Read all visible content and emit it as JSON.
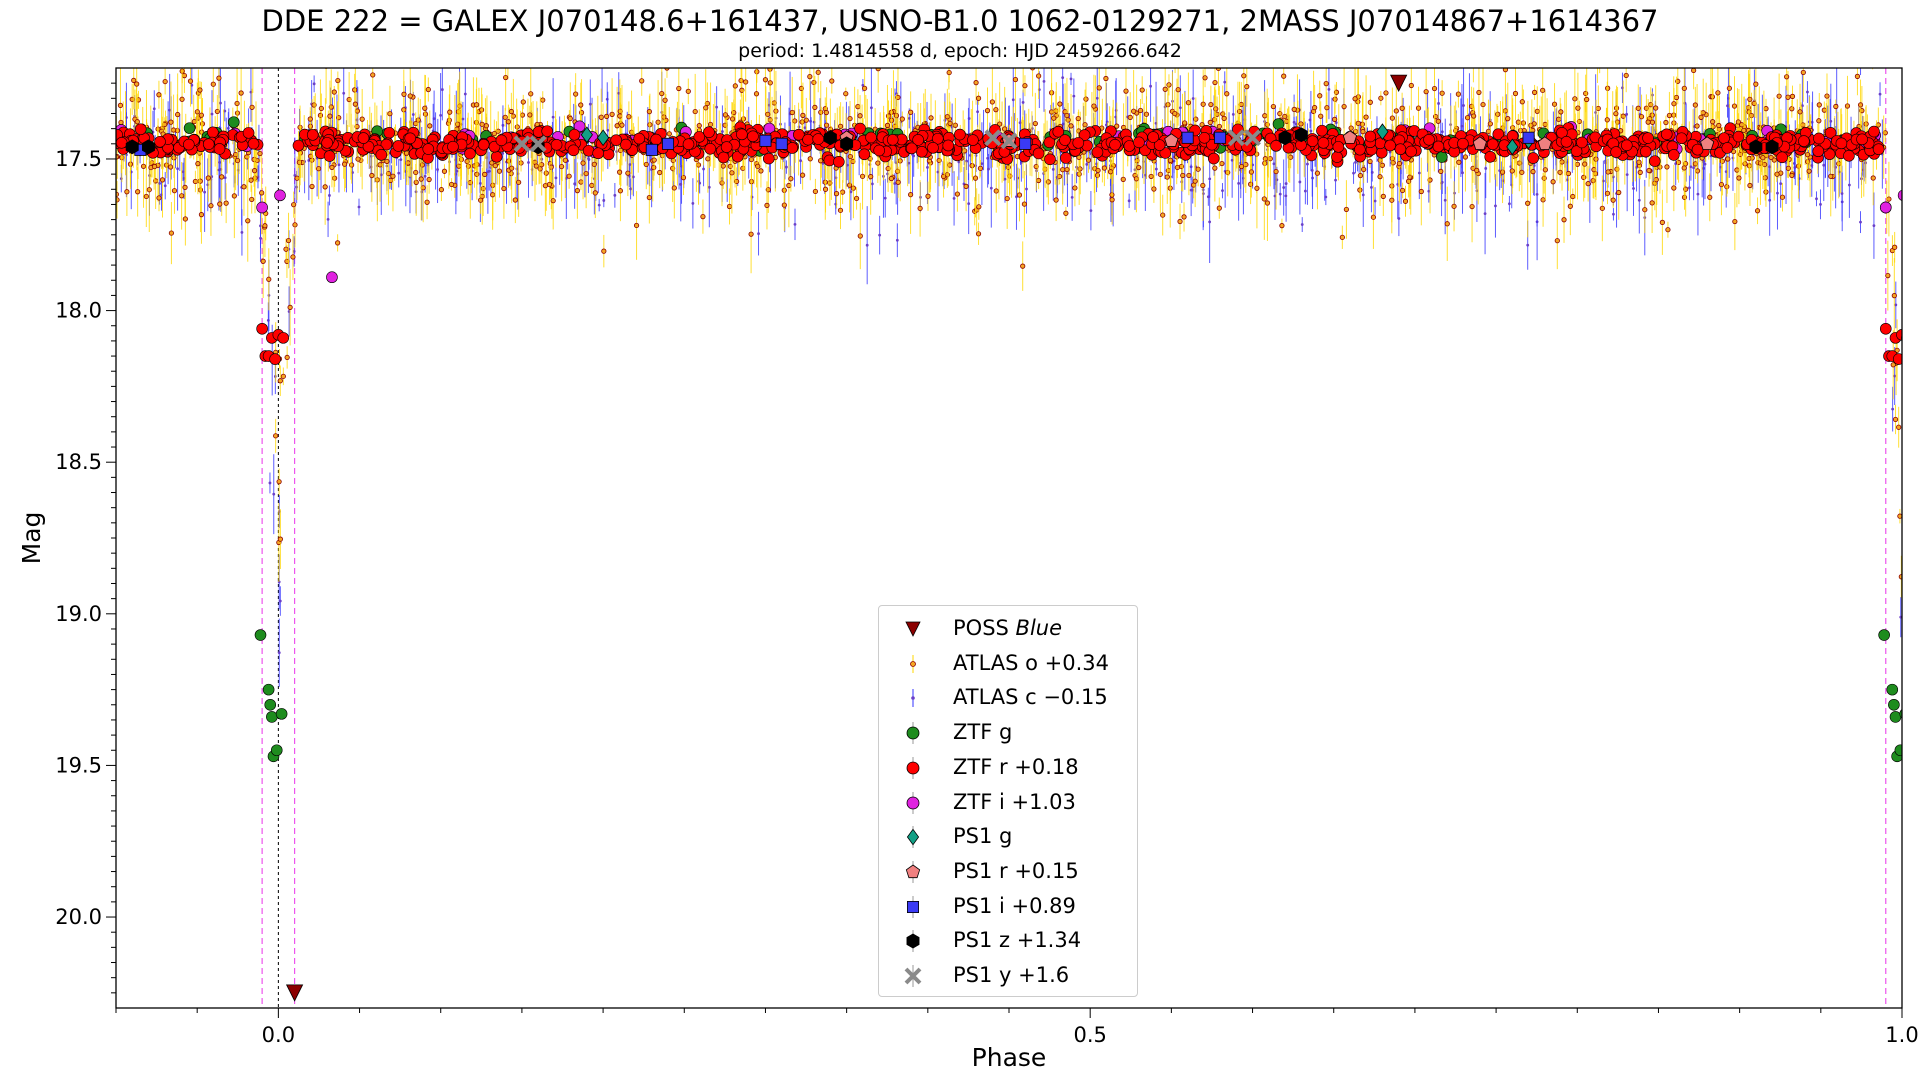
{
  "title": "DDE 222 = GALEX J070148.6+161437, USNO-B1.0 1062-0129271, 2MASS J07014867+1614367",
  "subtitle": "period: 1.4814558 d, epoch: HJD 2459266.642",
  "chart_data": {
    "type": "scatter",
    "xlabel": "Phase",
    "ylabel": "Mag",
    "xlim": [
      -0.1,
      1.0
    ],
    "ylim": [
      20.3,
      17.2
    ],
    "y_inverted": true,
    "x_ticks": [
      "0.0",
      "0.5",
      "1.0"
    ],
    "y_ticks": [
      "17.5",
      "18.0",
      "18.5",
      "19.0",
      "19.5",
      "20.0"
    ],
    "legend_position": "lower center",
    "eclipse_phase": 0.0,
    "eclipse_window": [
      -0.01,
      0.01
    ],
    "series": [
      {
        "name": "POSS Blue",
        "name_plain": "POSS ",
        "name_italic": "Blue",
        "marker": "triangle-down",
        "color": "#8b0000",
        "upper_limit": true,
        "points": [
          [
            0.01,
            20.25
          ],
          [
            0.69,
            17.25
          ]
        ]
      },
      {
        "name": "ATLAS o +0.34",
        "marker": "small-circle",
        "color": "#f5a623",
        "edge": "#8b0000",
        "errcolor": "#ffd700",
        "baseline": 17.45,
        "scatter": 0.16,
        "eclipse_depth": 1.5
      },
      {
        "name": "ATLAS c −0.15",
        "marker": "dot",
        "color": "#6a3fc8",
        "errcolor": "#3333ff",
        "baseline": 17.48,
        "scatter": 0.15,
        "eclipse_depth": 1.7
      },
      {
        "name": "ZTF g",
        "marker": "circle",
        "color": "#1e8c1e",
        "baseline": 17.43,
        "scatter": 0.03,
        "eclipse_points": [
          [
            -0.011,
            19.07
          ],
          [
            -0.006,
            19.25
          ],
          [
            -0.005,
            19.3
          ],
          [
            -0.004,
            19.34
          ],
          [
            -0.003,
            19.47
          ],
          [
            -0.001,
            19.45
          ],
          [
            0.002,
            19.33
          ]
        ]
      },
      {
        "name": "ZTF r +0.18",
        "marker": "circle",
        "color": "#ff0000",
        "baseline": 17.45,
        "scatter": 0.03,
        "eclipse_points": [
          [
            -0.01,
            18.06
          ],
          [
            -0.008,
            18.15
          ],
          [
            -0.006,
            18.15
          ],
          [
            -0.004,
            18.09
          ],
          [
            -0.002,
            18.16
          ],
          [
            0.0,
            18.08
          ],
          [
            0.003,
            18.09
          ]
        ]
      },
      {
        "name": "ZTF i +1.03",
        "marker": "circle",
        "color": "#e022e0",
        "baseline": 17.43,
        "scatter": 0.03,
        "eclipse_points": [
          [
            -0.01,
            17.66
          ],
          [
            0.001,
            17.62
          ],
          [
            0.033,
            17.89
          ],
          [
            0.99,
            17.66
          ]
        ]
      },
      {
        "name": "PS1 g",
        "marker": "diamond",
        "color": "#12a085",
        "points": [
          [
            0.19,
            17.42
          ],
          [
            0.2,
            17.43
          ],
          [
            0.68,
            17.41
          ],
          [
            0.76,
            17.46
          ],
          [
            0.77,
            17.44
          ]
        ]
      },
      {
        "name": "PS1 r +0.15",
        "marker": "pentagon",
        "color": "#f08080",
        "points": [
          [
            0.35,
            17.43
          ],
          [
            0.45,
            17.44
          ],
          [
            0.55,
            17.44
          ],
          [
            0.66,
            17.43
          ],
          [
            0.74,
            17.45
          ],
          [
            0.78,
            17.45
          ],
          [
            0.88,
            17.45
          ]
        ]
      },
      {
        "name": "PS1 i +0.89",
        "marker": "square",
        "color": "#3a3af5",
        "points": [
          [
            -0.085,
            17.47
          ],
          [
            0.23,
            17.47
          ],
          [
            0.24,
            17.45
          ],
          [
            0.3,
            17.44
          ],
          [
            0.31,
            17.45
          ],
          [
            0.46,
            17.45
          ],
          [
            0.56,
            17.43
          ],
          [
            0.58,
            17.43
          ],
          [
            0.77,
            17.43
          ]
        ]
      },
      {
        "name": "PS1 z +1.34",
        "marker": "hexagon",
        "color": "#000000",
        "points": [
          [
            -0.09,
            17.46
          ],
          [
            -0.08,
            17.46
          ],
          [
            0.16,
            17.46
          ],
          [
            0.34,
            17.43
          ],
          [
            0.35,
            17.45
          ],
          [
            0.62,
            17.43
          ],
          [
            0.63,
            17.42
          ],
          [
            0.91,
            17.46
          ],
          [
            0.92,
            17.46
          ]
        ]
      },
      {
        "name": "PS1 y +1.6",
        "marker": "x",
        "color": "#8a8a8a",
        "points": [
          [
            0.15,
            17.45
          ],
          [
            0.16,
            17.45
          ],
          [
            0.44,
            17.43
          ],
          [
            0.45,
            17.44
          ],
          [
            0.59,
            17.43
          ],
          [
            0.6,
            17.43
          ]
        ]
      }
    ]
  }
}
